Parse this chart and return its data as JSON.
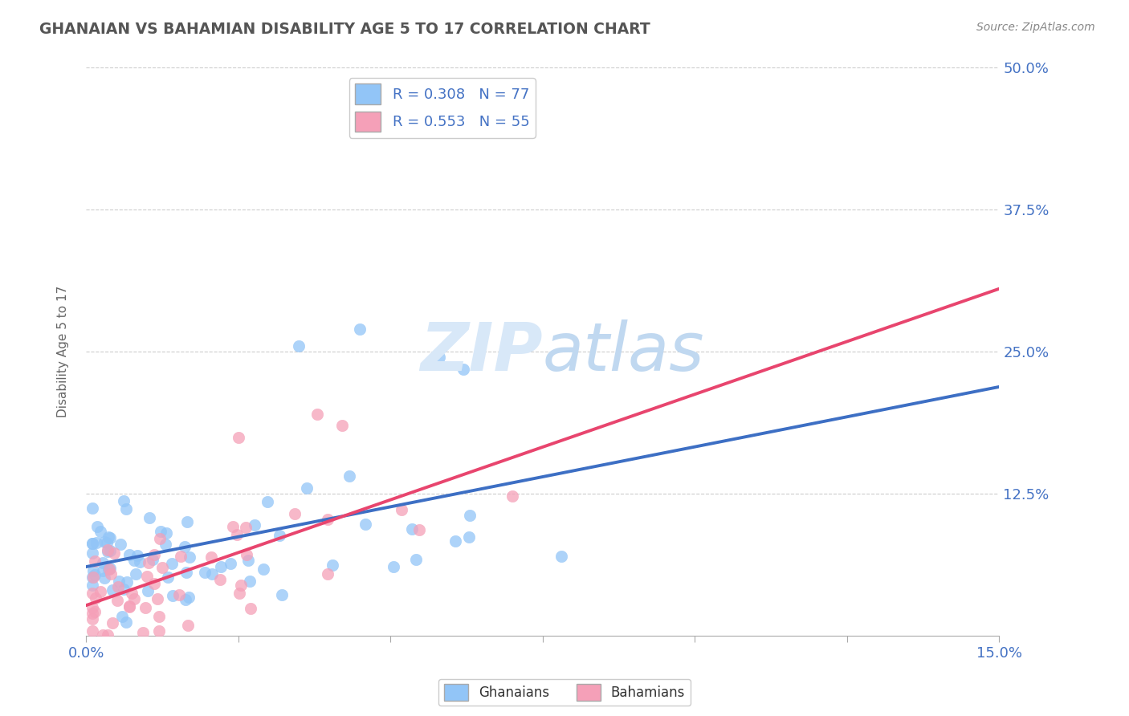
{
  "title": "GHANAIAN VS BAHAMIAN DISABILITY AGE 5 TO 17 CORRELATION CHART",
  "source_text": "Source: ZipAtlas.com",
  "ylabel": "Disability Age 5 to 17",
  "xlim": [
    0.0,
    0.15
  ],
  "ylim": [
    0.0,
    0.5
  ],
  "xtick_vals": [
    0.0,
    0.025,
    0.05,
    0.075,
    0.1,
    0.125,
    0.15
  ],
  "ytick_vals": [
    0.0,
    0.125,
    0.25,
    0.375,
    0.5
  ],
  "ghanaian_R": 0.308,
  "ghanaian_N": 77,
  "bahamian_R": 0.553,
  "bahamian_N": 55,
  "ghanaian_color": "#92c5f7",
  "bahamian_color": "#f5a0b8",
  "ghanaian_line_color": "#3d6fc4",
  "bahamian_line_color": "#e8456e",
  "dashed_line_color": "#d4a0b0",
  "watermark_color": "#d8e8f8",
  "axis_color": "#4472c4",
  "title_color": "#555555",
  "legend_label_ghanaian": "Ghanaians",
  "legend_label_bahamian": "Bahamians",
  "ghanaian_seed": 42,
  "bahamian_seed": 99
}
